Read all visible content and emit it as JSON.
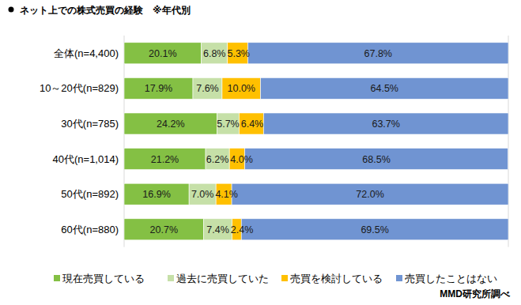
{
  "chart_data": {
    "type": "bar",
    "orientation": "horizontal",
    "stacked": true,
    "data_labels": true,
    "tick_labels": "y",
    "grid": false,
    "legend": "bottom",
    "title": "ネット上での株式売買の経験　※年代別",
    "annotations": [
      "MMD研究所調べ"
    ],
    "categories": [
      "全体(n=4,400)",
      "10～20代(n=829)",
      "30代(n=785)",
      "40代(n=1,014)",
      "50代(n=892)",
      "60代(n=880)"
    ],
    "xlim": [
      0,
      100
    ],
    "series": [
      {
        "name": "現在売買している",
        "color": "#84c044",
        "values": [
          20.1,
          17.9,
          24.2,
          21.2,
          16.9,
          20.7
        ],
        "value_labels": [
          "20.1%",
          "17.9%",
          "24.2%",
          "21.2%",
          "16.9%",
          "20.7%"
        ]
      },
      {
        "name": "過去に売買していた",
        "color": "#c6e0a8",
        "values": [
          6.8,
          7.6,
          5.7,
          6.2,
          7.0,
          7.4
        ],
        "value_labels": [
          "6.8%",
          "7.6%",
          "5.7%",
          "6.2%",
          "7.0%",
          "7.4%"
        ]
      },
      {
        "name": "売買を検討している",
        "color": "#ffc000",
        "values": [
          5.3,
          10.0,
          6.4,
          4.0,
          4.1,
          2.4
        ],
        "value_labels": [
          "5.3%",
          "10.0%",
          "6.4%",
          "4.0%",
          "4.1%",
          "2.4%"
        ]
      },
      {
        "name": "売買したことはない",
        "color": "#7094d2",
        "values": [
          67.8,
          64.5,
          63.7,
          68.5,
          72.0,
          69.5
        ],
        "value_labels": [
          "67.8%",
          "64.5%",
          "63.7%",
          "68.5%",
          "72.0%",
          "69.5%"
        ]
      }
    ]
  }
}
